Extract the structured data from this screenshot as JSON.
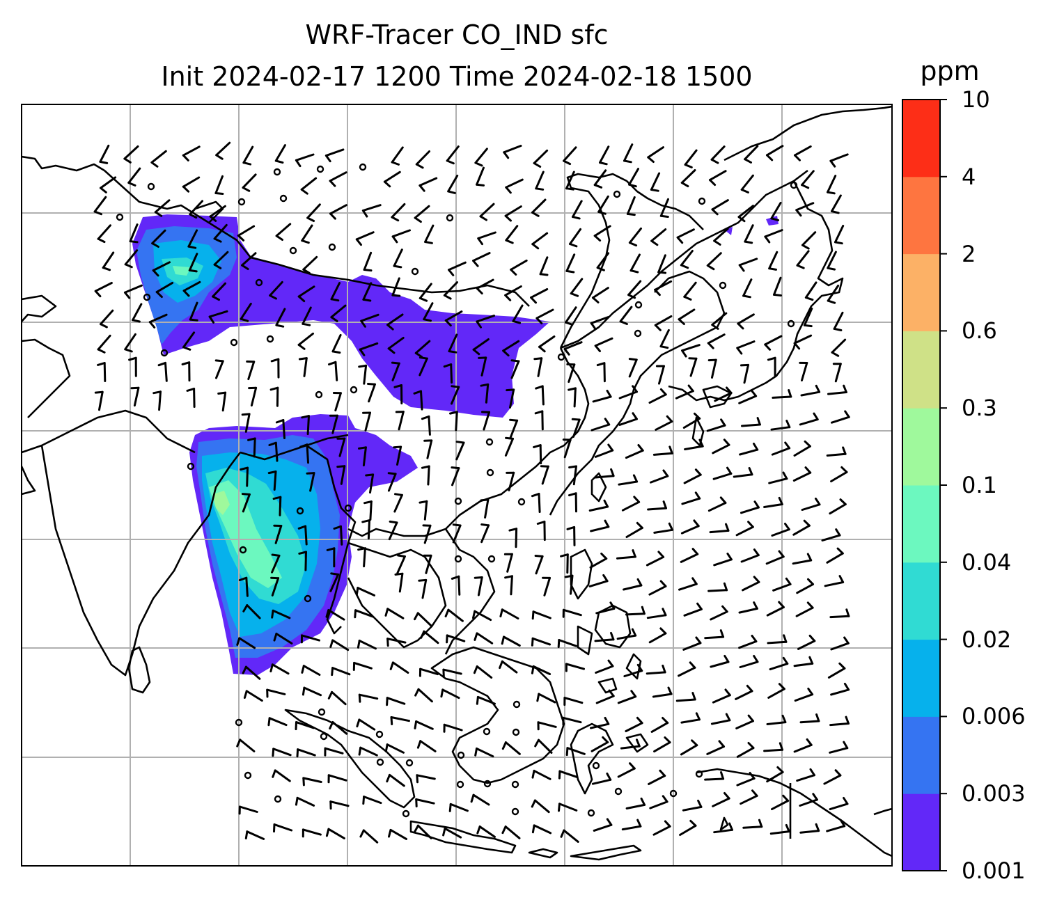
{
  "title": {
    "line1": "WRF-Tracer CO_IND sfc",
    "line2": "Init 2024-02-17 1200 Time 2024-02-18 1500"
  },
  "colorbar": {
    "unit": "ppm",
    "levels": [
      "0.001",
      "0.003",
      "0.006",
      "0.02",
      "0.04",
      "0.1",
      "0.3",
      "0.6",
      "2",
      "4",
      "10"
    ],
    "colors": [
      "#6228f8",
      "#3574f2",
      "#06b1ec",
      "#30dbd3",
      "#6cf8bf",
      "#9ff99c",
      "#cfe187",
      "#fcb166",
      "#fe7540",
      "#fd2e17"
    ]
  },
  "map": {
    "coastline_color": "#000000",
    "gridline_color": "#b0b0b0",
    "overlay": "wind barbs",
    "grid_on": true
  }
}
